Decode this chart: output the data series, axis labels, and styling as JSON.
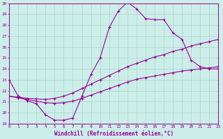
{
  "xlabel": "Windchill (Refroidissement éolien,°C)",
  "xlim": [
    0,
    23
  ],
  "ylim": [
    19,
    30
  ],
  "yticks": [
    19,
    20,
    21,
    22,
    23,
    24,
    25,
    26,
    27,
    28,
    29,
    30
  ],
  "xticks": [
    0,
    1,
    2,
    3,
    4,
    5,
    6,
    7,
    8,
    9,
    10,
    11,
    12,
    13,
    14,
    15,
    16,
    17,
    18,
    19,
    20,
    21,
    22,
    23
  ],
  "background_color": "#cceee8",
  "grid_color": "#aad4cc",
  "line_color": "#990099",
  "line1_x": [
    0,
    1,
    2,
    3,
    4,
    5,
    6,
    7,
    8,
    9,
    10,
    11,
    12,
    13,
    14,
    15,
    16,
    17,
    18,
    19,
    20,
    21,
    22,
    23
  ],
  "line1_y": [
    23.0,
    21.5,
    21.1,
    20.8,
    19.8,
    19.3,
    19.3,
    19.5,
    21.5,
    23.5,
    25.0,
    27.8,
    29.3,
    30.1,
    29.5,
    28.6,
    28.5,
    28.5,
    27.3,
    26.7,
    24.8,
    24.2,
    24.0,
    24.0
  ],
  "line2_x": [
    0,
    1,
    2,
    3,
    4,
    5,
    6,
    7,
    8,
    9,
    10,
    11,
    12,
    13,
    14,
    15,
    16,
    17,
    18,
    19,
    20,
    21,
    22,
    23
  ],
  "line2_y": [
    21.5,
    21.4,
    21.3,
    21.25,
    21.2,
    21.3,
    21.5,
    21.8,
    22.2,
    22.6,
    23.0,
    23.4,
    23.8,
    24.2,
    24.5,
    24.8,
    25.1,
    25.3,
    25.6,
    25.8,
    26.1,
    26.3,
    26.5,
    26.7
  ],
  "line3_x": [
    0,
    1,
    2,
    3,
    4,
    5,
    6,
    7,
    8,
    9,
    10,
    11,
    12,
    13,
    14,
    15,
    16,
    17,
    18,
    19,
    20,
    21,
    22,
    23
  ],
  "line3_y": [
    21.5,
    21.35,
    21.2,
    21.05,
    20.9,
    20.85,
    20.9,
    21.05,
    21.3,
    21.6,
    21.9,
    22.2,
    22.5,
    22.8,
    23.05,
    23.2,
    23.35,
    23.5,
    23.65,
    23.8,
    23.9,
    24.0,
    24.1,
    24.2
  ]
}
